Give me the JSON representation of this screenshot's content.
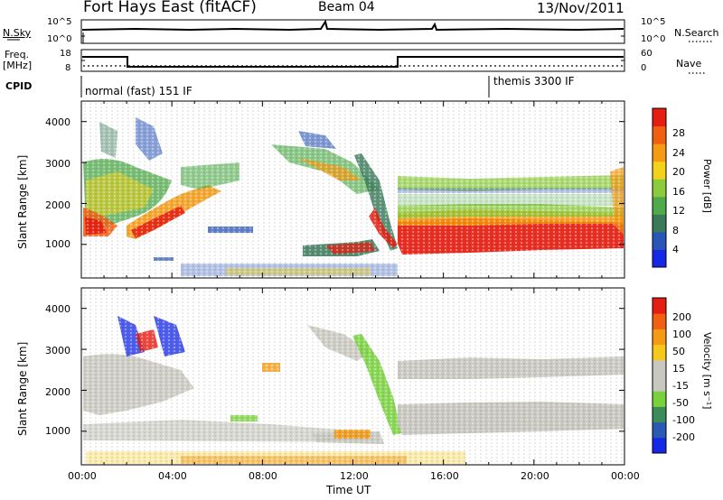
{
  "header": {
    "radar": "Fort Hays East (fitACF)",
    "beam": "Beam 04",
    "date": "13/Nov/2011"
  },
  "noise": {
    "left_label": "N.Sky",
    "right_label": "N.Search",
    "left_ticks": [
      "10^5",
      "10^0"
    ],
    "right_ticks": [
      "10^5",
      "10^0"
    ]
  },
  "freq": {
    "left_label_1": "Freq.",
    "left_label_2": "[MHz]",
    "left_ticks": [
      "18",
      "8"
    ],
    "right_label": "Nave",
    "right_ticks": [
      "60",
      "0"
    ]
  },
  "cpid": {
    "label": "CPID",
    "segment_1": "normal (fast) 151 IF",
    "segment_2": "themis 3300 IF"
  },
  "colors": {
    "power": [
      "#1428e6",
      "#2a55b8",
      "#3a7a5a",
      "#4faa4a",
      "#8ccc3c",
      "#f2d21a",
      "#f59a12",
      "#f06010",
      "#e61e12"
    ],
    "velocity": [
      "#e61e12",
      "#f06010",
      "#f59a12",
      "#f5c81a",
      "#c8c8c0",
      "#c8c8c0",
      "#78d23c",
      "#3c8c5a",
      "#2a5ab4",
      "#1428e6"
    ]
  },
  "chart_data": [
    {
      "type": "heatmap",
      "ylabel": "Slant Range [km]",
      "xlabel": "Time UT",
      "x_ticks": [
        "00:00",
        "04:00",
        "08:00",
        "12:00",
        "16:00",
        "20:00",
        "00:00"
      ],
      "y_ticks": [
        "1000",
        "2000",
        "3000",
        "4000"
      ],
      "ylim": [
        180,
        4500
      ],
      "colorbar_label": "Power [dB]",
      "colorbar_ticks": [
        "4",
        "8",
        "12",
        "16",
        "20",
        "24",
        "28"
      ],
      "colorbar_range": [
        0,
        30
      ]
    },
    {
      "type": "heatmap",
      "ylabel": "Slant Range [km]",
      "xlabel": "Time UT",
      "x_ticks": [
        "00:00",
        "04:00",
        "08:00",
        "12:00",
        "16:00",
        "20:00",
        "00:00"
      ],
      "y_ticks": [
        "1000",
        "2000",
        "3000",
        "4000"
      ],
      "ylim": [
        180,
        4500
      ],
      "colorbar_label": "Velocity [m s⁻¹]",
      "colorbar_ticks": [
        "200",
        "100",
        "50",
        "15",
        "-15",
        "-50",
        "-100",
        "-200"
      ],
      "colorbar_range": [
        -250,
        250
      ]
    }
  ]
}
